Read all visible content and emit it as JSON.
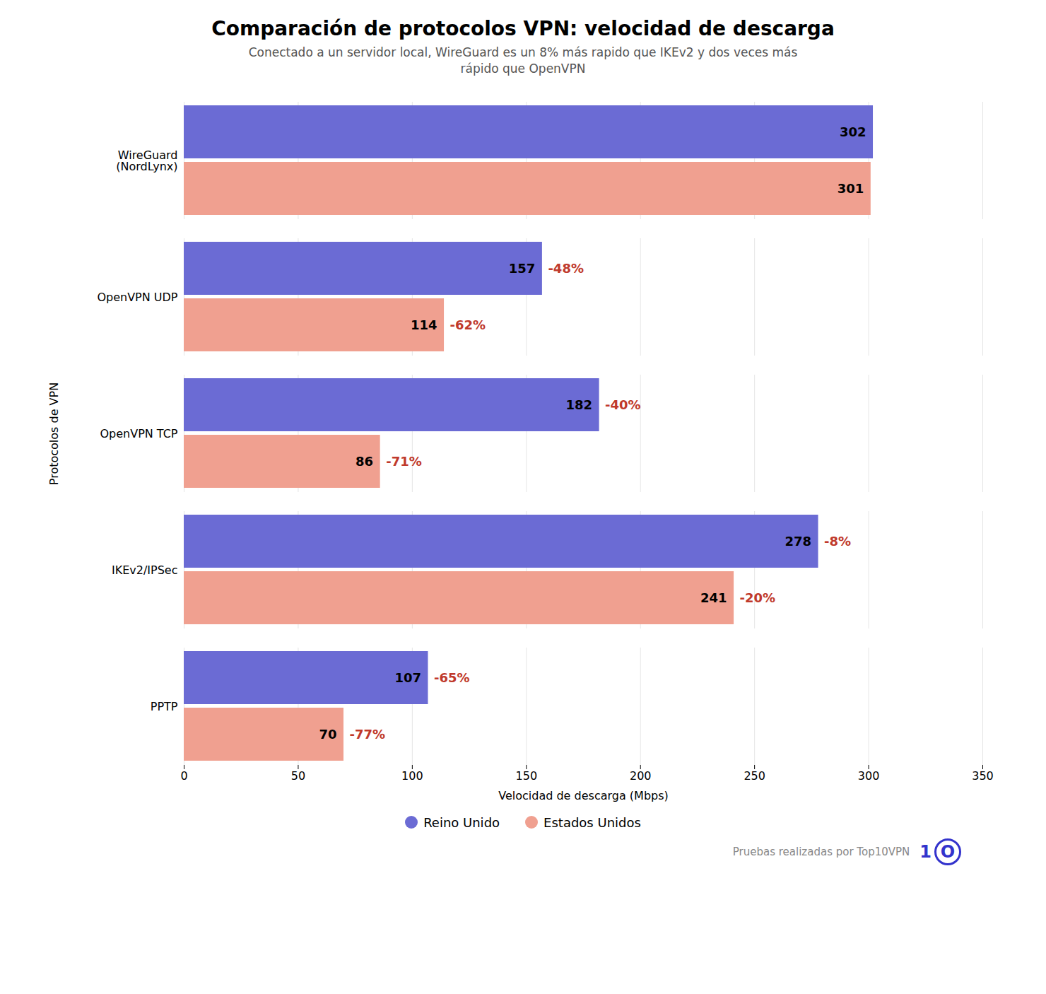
{
  "chart_data": {
    "type": "bar",
    "orientation": "horizontal",
    "title": "Comparación de protocolos VPN: velocidad de descarga",
    "subtitle": "Conectado a un servidor local, WireGuard es un 8% más rapido que IKEv2 y dos veces más\nrápido que OpenVPN",
    "xlabel": "Velocidad de descarga (Mbps)",
    "ylabel": "Protocolos de VPN",
    "categories": [
      "WireGuard\n(NordLynx)",
      "OpenVPN UDP",
      "OpenVPN TCP",
      "IKEv2/IPSec",
      "PPTP"
    ],
    "series": [
      {
        "name": "Reino Unido",
        "color": "#6B6BD4",
        "values": [
          302,
          157,
          182,
          278,
          107
        ]
      },
      {
        "name": "Estados Unidos",
        "color": "#F0A090",
        "values": [
          301,
          114,
          86,
          241,
          70
        ]
      }
    ],
    "data_labels": true,
    "xlim": [
      0,
      350
    ],
    "xticks": [
      0,
      50,
      100,
      150,
      200,
      250,
      300,
      350
    ],
    "grid": true,
    "legend": "bottom",
    "annotations": [
      {
        "text": "-48%",
        "series": "Reino Unido",
        "category": "OpenVPN UDP",
        "color": "#C0392B"
      },
      {
        "text": "-40%",
        "series": "Reino Unido",
        "category": "OpenVPN TCP",
        "color": "#C0392B"
      },
      {
        "text": "-8%",
        "series": "Reino Unido",
        "category": "IKEv2/IPSec",
        "color": "#C0392B"
      },
      {
        "text": "-65%",
        "series": "Reino Unido",
        "category": "PPTP",
        "color": "#C0392B"
      },
      {
        "text": "-62%",
        "series": "Estados Unidos",
        "category": "OpenVPN UDP",
        "color": "#C0392B"
      },
      {
        "text": "-71%",
        "series": "Estados Unidos",
        "category": "OpenVPN TCP",
        "color": "#C0392B"
      },
      {
        "text": "-20%",
        "series": "Estados Unidos",
        "category": "IKEv2/IPSec",
        "color": "#C0392B"
      },
      {
        "text": "-77%",
        "series": "Estados Unidos",
        "category": "PPTP",
        "color": "#C0392B"
      },
      {
        "text": "Pruebas realizadas por Top10VPN"
      },
      {
        "text": "1",
        "color": "#3333cc"
      },
      {
        "text": "O",
        "color": "#3333cc"
      }
    ]
  }
}
